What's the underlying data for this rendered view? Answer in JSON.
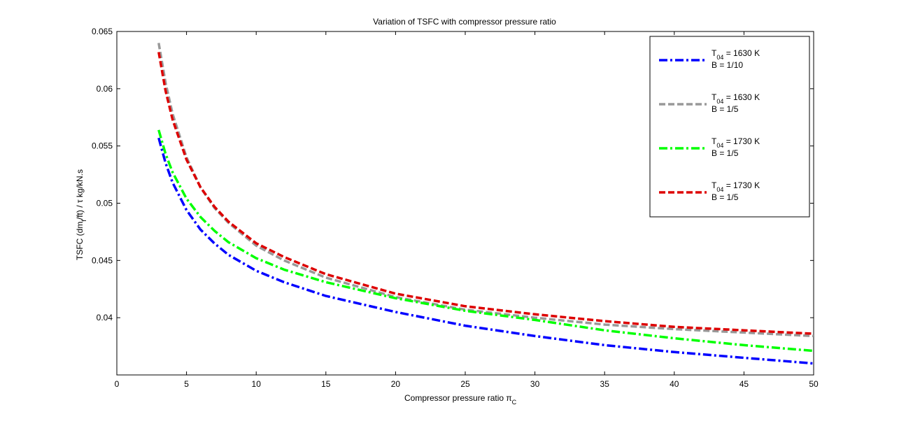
{
  "chart_data": {
    "type": "line",
    "title": "Variation of TSFC with compressor pressure ratio",
    "xlabel": {
      "main": "Compressor pressure ratio π",
      "sub": "C"
    },
    "ylabel": {
      "part1": "TSFC (dm",
      "sub": "f",
      "part2": "/ft) / τ    kg/kN.s"
    },
    "xlim": [
      0,
      50
    ],
    "ylim": [
      0.035,
      0.065
    ],
    "x_ticks": [
      0,
      5,
      10,
      15,
      20,
      25,
      30,
      35,
      40,
      45,
      50
    ],
    "y_ticks": [
      0.04,
      0.045,
      0.05,
      0.055,
      0.06,
      0.065
    ],
    "x_tick_labels": [
      "0",
      "5",
      "10",
      "15",
      "20",
      "25",
      "30",
      "35",
      "40",
      "45",
      "50"
    ],
    "y_tick_labels": [
      "0.04",
      "0.045",
      "0.05",
      "0.055",
      "0.06",
      "0.065"
    ],
    "grid": false,
    "legend_position": "top-right",
    "x": [
      3,
      3.5,
      4,
      5,
      6,
      7,
      8,
      10,
      12,
      15,
      20,
      25,
      30,
      35,
      40,
      45,
      50
    ],
    "series": [
      {
        "name": "T04 = 1630 K B = 1/10",
        "legend_name": {
          "t": "T",
          "sub": "04",
          "temp": " = 1630 K",
          "bypass": "B = 1/10"
        },
        "color": "#0000ff",
        "dash": "dashdot",
        "values": [
          0.0557,
          0.0535,
          0.0518,
          0.0494,
          0.0477,
          0.0465,
          0.0455,
          0.0441,
          0.0431,
          0.0419,
          0.0405,
          0.0393,
          0.0384,
          0.0376,
          0.037,
          0.0365,
          0.036
        ]
      },
      {
        "name": "T04 = 1630 K B = 1/5",
        "legend_name": {
          "t": "T",
          "sub": "04",
          "temp": " = 1630 K",
          "bypass": "B = 1/5"
        },
        "color": "#999999",
        "dash": "dashed",
        "values": [
          0.064,
          0.0605,
          0.0578,
          0.054,
          0.0514,
          0.0496,
          0.0483,
          0.0463,
          0.045,
          0.0435,
          0.0418,
          0.0407,
          0.04,
          0.0394,
          0.039,
          0.0387,
          0.0384
        ]
      },
      {
        "name": "T04 = 1730 K B = 1/5",
        "legend_name": {
          "t": "T",
          "sub": "04",
          "temp": " = 1730 K",
          "bypass": "B = 1/5"
        },
        "color": "#00ff00",
        "dash": "dashdot",
        "values": [
          0.0564,
          0.0543,
          0.0527,
          0.0504,
          0.0488,
          0.0476,
          0.0466,
          0.0452,
          0.0442,
          0.0431,
          0.0417,
          0.0406,
          0.0398,
          0.0389,
          0.0382,
          0.0376,
          0.0371
        ]
      },
      {
        "name": "T04 = 1730 K B = 1/5",
        "legend_name": {
          "t": "T",
          "sub": "04",
          "temp": " = 1730 K",
          "bypass": "B = 1/5"
        },
        "color": "#dd0000",
        "dash": "dashed",
        "values": [
          0.0632,
          0.0598,
          0.0573,
          0.0538,
          0.0514,
          0.0497,
          0.0484,
          0.0465,
          0.0453,
          0.0438,
          0.0421,
          0.041,
          0.0403,
          0.0397,
          0.0392,
          0.0389,
          0.0386
        ]
      }
    ]
  }
}
